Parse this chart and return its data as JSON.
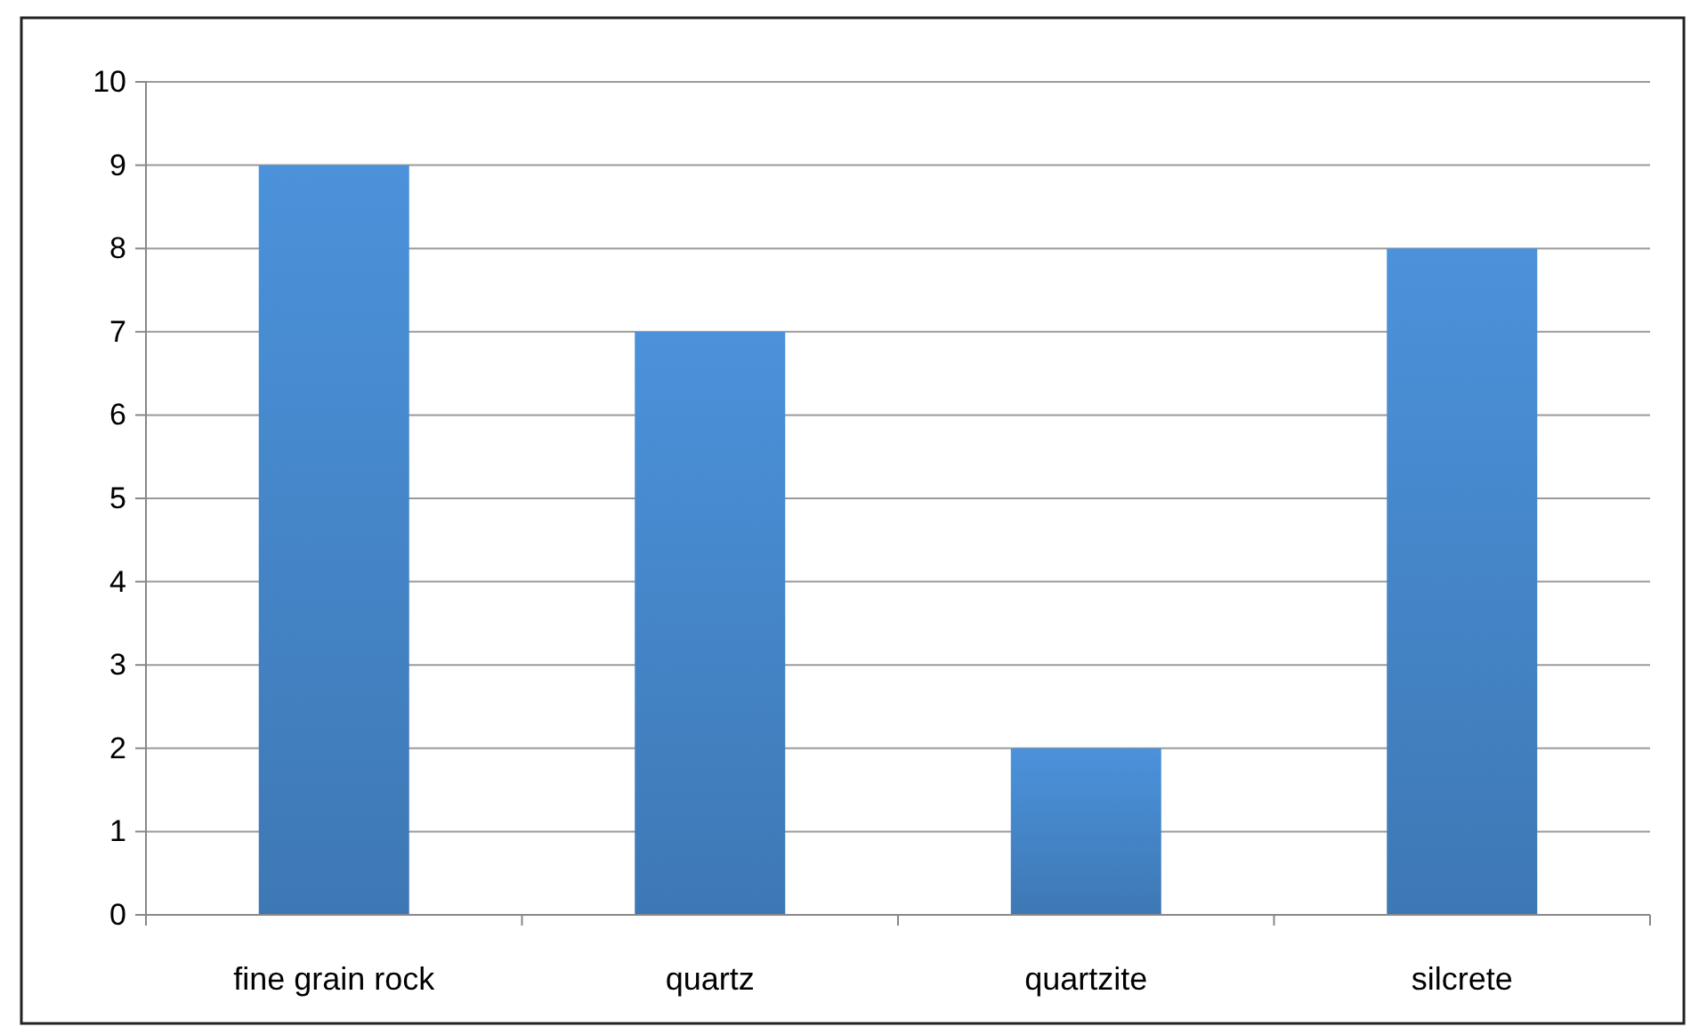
{
  "chart_data": {
    "type": "bar",
    "categories": [
      "fine grain rock",
      "quartz",
      "quartzite",
      "silcrete"
    ],
    "values": [
      9,
      7,
      2,
      8
    ],
    "color": "#4688cc",
    "ylim": [
      0,
      10
    ],
    "yticks": [
      0,
      1,
      2,
      3,
      4,
      5,
      6,
      7,
      8,
      9,
      10
    ],
    "grid": "y"
  }
}
